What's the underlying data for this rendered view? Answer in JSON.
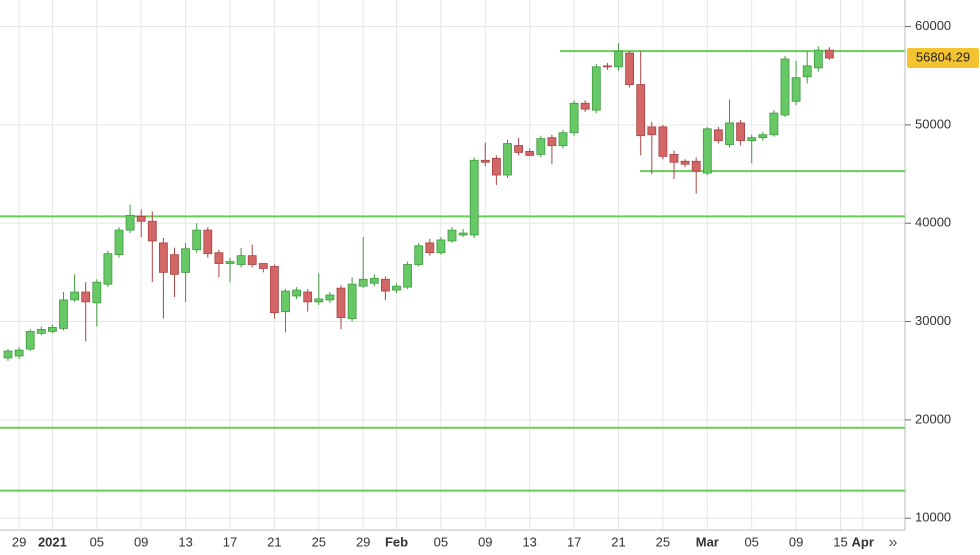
{
  "chart_data": {
    "type": "candlestick",
    "categories": [
      null,
      "29",
      null,
      null,
      "2021",
      null,
      null,
      null,
      "05",
      null,
      null,
      null,
      "09",
      null,
      null,
      null,
      "13",
      null,
      null,
      null,
      "17",
      null,
      null,
      null,
      "21",
      null,
      null,
      null,
      "25",
      null,
      null,
      null,
      "29",
      null,
      null,
      "Feb",
      null,
      null,
      null,
      "05",
      null,
      null,
      null,
      "09",
      null,
      null,
      null,
      "13",
      null,
      null,
      null,
      "17",
      null,
      null,
      null,
      "21",
      null,
      null,
      null,
      "25",
      null,
      null,
      null,
      "Mar",
      null,
      null,
      null,
      "05",
      null,
      null,
      null,
      "09",
      null,
      null,
      null,
      "15",
      null,
      "Apr"
    ],
    "open": [
      26300,
      26500,
      27200,
      28800,
      29000,
      29300,
      32200,
      33000,
      31900,
      33800,
      36800,
      39300,
      40700,
      40200,
      38000,
      36800,
      35000,
      37300,
      39300,
      37000,
      35900,
      35800,
      36700,
      35900,
      35600,
      31000,
      32600,
      33000,
      32000,
      32200,
      33400,
      30300,
      33600,
      33900,
      34300,
      33200,
      33500,
      35800,
      38000,
      37000,
      38200,
      38800,
      38800,
      46400,
      46600,
      44900,
      47900,
      47300,
      47000,
      48700,
      47900,
      49200,
      52200,
      51500,
      56000,
      55900,
      57300,
      54100,
      49800,
      49800,
      47000,
      46300,
      46300,
      45100,
      49500,
      48000,
      50200,
      48400,
      48700,
      49000,
      51000,
      52400,
      54900,
      55800,
      57600,
      null,
      null,
      null
    ],
    "high": [
      27200,
      27400,
      29200,
      29500,
      29700,
      33000,
      34800,
      34000,
      34300,
      37200,
      39600,
      41900,
      41400,
      41200,
      38500,
      37500,
      38000,
      40000,
      39600,
      37300,
      36500,
      37500,
      37800,
      35900,
      35800,
      33300,
      33500,
      33300,
      34900,
      33000,
      33700,
      34500,
      38600,
      34800,
      34600,
      33900,
      36100,
      38000,
      38400,
      38600,
      39600,
      39400,
      46700,
      48200,
      46900,
      48500,
      48700,
      47600,
      48900,
      49000,
      49500,
      52500,
      52500,
      56200,
      56300,
      58300,
      57500,
      57500,
      50300,
      50000,
      47400,
      46500,
      46700,
      49800,
      49800,
      52600,
      50500,
      49000,
      49300,
      51500,
      57000,
      56500,
      57500,
      58000,
      57900,
      null,
      null,
      null
    ],
    "low": [
      26000,
      26200,
      27000,
      28600,
      28800,
      29100,
      32000,
      28000,
      29500,
      33500,
      36500,
      39000,
      38600,
      34000,
      30300,
      32500,
      32000,
      37000,
      36500,
      34500,
      34000,
      35500,
      35500,
      35000,
      30300,
      28900,
      32300,
      31000,
      31700,
      31900,
      29200,
      30000,
      33400,
      33600,
      32200,
      32900,
      33300,
      35600,
      36700,
      36800,
      38000,
      38600,
      38500,
      45800,
      43900,
      44600,
      46900,
      46800,
      46700,
      46000,
      47600,
      48900,
      51300,
      51200,
      55600,
      55500,
      53800,
      46900,
      45000,
      46500,
      44500,
      45700,
      43000,
      44900,
      48100,
      47700,
      47900,
      46100,
      48400,
      48800,
      50800,
      52000,
      54200,
      55400,
      56600,
      null,
      null,
      null
    ],
    "close": [
      27000,
      27100,
      29000,
      29200,
      29400,
      32200,
      33000,
      32000,
      34000,
      36900,
      39300,
      40800,
      40200,
      38200,
      35000,
      34800,
      37400,
      39300,
      36900,
      35900,
      36100,
      36700,
      35800,
      35400,
      30900,
      33100,
      33200,
      32000,
      32300,
      32700,
      30400,
      33800,
      34300,
      34400,
      33100,
      33600,
      35800,
      37700,
      37000,
      38300,
      39300,
      39000,
      46400,
      46200,
      44900,
      48100,
      47200,
      46900,
      48600,
      47900,
      49200,
      52200,
      51600,
      55900,
      55900,
      57500,
      54100,
      48900,
      49000,
      46800,
      46200,
      46000,
      45300,
      49600,
      48400,
      50200,
      48400,
      48700,
      49000,
      51200,
      56700,
      54800,
      56000,
      57600,
      56800,
      null,
      null,
      null
    ],
    "up_color": "#66c966",
    "down_color": "#d36666",
    "ylim": [
      8800,
      62700
    ],
    "yticks": [
      10000,
      20000,
      30000,
      40000,
      50000,
      60000
    ],
    "grid": true,
    "levels": [
      57500,
      45300,
      40700,
      19200,
      12800
    ],
    "level_color": "#6ccc5a",
    "last_price": 56804.29,
    "last_price_color": "#f4c430"
  },
  "controls": {
    "scroll_right": "»"
  }
}
